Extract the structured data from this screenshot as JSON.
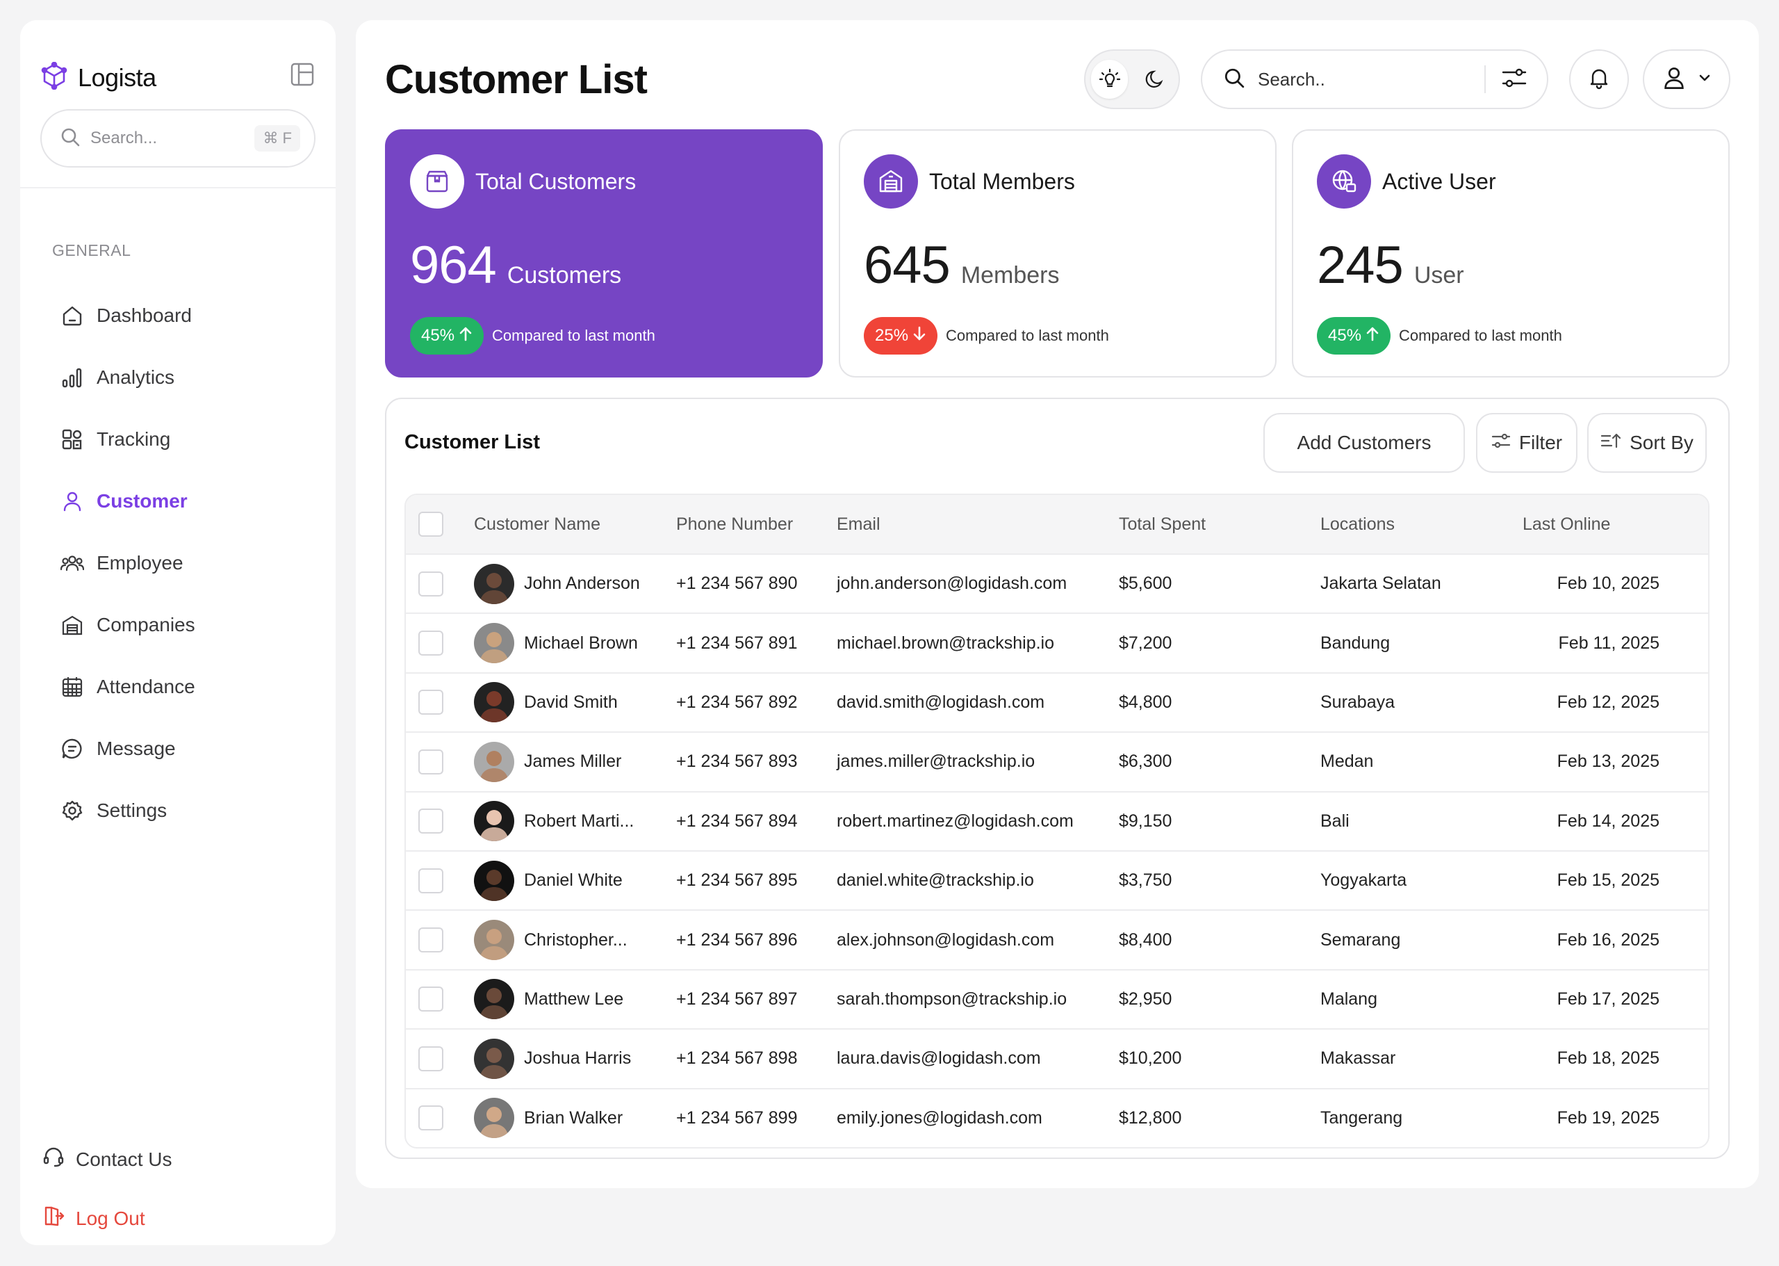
{
  "brand": {
    "name": "Logista"
  },
  "sidebar": {
    "search_placeholder": "Search...",
    "search_shortcut": "⌘ F",
    "group_label": "GENERAL",
    "items": [
      {
        "label": "Dashboard",
        "icon": "home-icon"
      },
      {
        "label": "Analytics",
        "icon": "analytics-icon"
      },
      {
        "label": "Tracking",
        "icon": "tracking-icon"
      },
      {
        "label": "Customer",
        "icon": "user-icon",
        "active": true
      },
      {
        "label": "Employee",
        "icon": "team-icon"
      },
      {
        "label": "Companies",
        "icon": "building-icon"
      },
      {
        "label": "Attendance",
        "icon": "calendar-icon"
      },
      {
        "label": "Message",
        "icon": "message-icon"
      },
      {
        "label": "Settings",
        "icon": "gear-icon"
      }
    ],
    "contact_label": "Contact Us",
    "logout_label": "Log Out"
  },
  "header": {
    "title": "Customer List",
    "search_placeholder": "Search.."
  },
  "stats": [
    {
      "title": "Total Customers",
      "value": "964",
      "unit": "Customers",
      "change": "45%",
      "direction": "up",
      "compare": "Compared to last month",
      "icon": "box-icon"
    },
    {
      "title": "Total Members",
      "value": "645",
      "unit": "Members",
      "change": "25%",
      "direction": "down",
      "compare": "Compared to last month",
      "icon": "warehouse-icon"
    },
    {
      "title": "Active User",
      "value": "245",
      "unit": "User",
      "change": "45%",
      "direction": "up",
      "compare": "Compared to last month",
      "icon": "globe-icon"
    }
  ],
  "table": {
    "title": "Customer List",
    "add_label": "Add Customers",
    "filter_label": "Filter",
    "sort_label": "Sort By",
    "columns": [
      "Customer Name",
      "Phone Number",
      "Email",
      "Total Spent",
      "Locations",
      "Last Online"
    ],
    "rows": [
      {
        "name": "John Anderson",
        "phone": "+1 234 567 890",
        "email": "john.anderson@logidash.com",
        "spent": "$5,600",
        "location": "Jakarta Selatan",
        "last": "Feb 10, 2025"
      },
      {
        "name": "Michael Brown",
        "phone": "+1 234 567 891",
        "email": "michael.brown@trackship.io",
        "spent": "$7,200",
        "location": "Bandung",
        "last": "Feb 11, 2025"
      },
      {
        "name": "David Smith",
        "phone": "+1 234 567 892",
        "email": "david.smith@logidash.com",
        "spent": "$4,800",
        "location": "Surabaya",
        "last": "Feb 12, 2025"
      },
      {
        "name": "James Miller",
        "phone": "+1 234 567 893",
        "email": "james.miller@trackship.io",
        "spent": "$6,300",
        "location": "Medan",
        "last": "Feb 13, 2025"
      },
      {
        "name": "Robert Marti...",
        "phone": "+1 234 567 894",
        "email": "robert.martinez@logidash.com",
        "spent": "$9,150",
        "location": "Bali",
        "last": "Feb 14, 2025"
      },
      {
        "name": "Daniel White",
        "phone": "+1 234 567 895",
        "email": "daniel.white@trackship.io",
        "spent": "$3,750",
        "location": "Yogyakarta",
        "last": "Feb 15, 2025"
      },
      {
        "name": "Christopher...",
        "phone": "+1 234 567 896",
        "email": "alex.johnson@logidash.com",
        "spent": "$8,400",
        "location": "Semarang",
        "last": "Feb 16, 2025"
      },
      {
        "name": "Matthew Lee",
        "phone": "+1 234 567 897",
        "email": "sarah.thompson@trackship.io",
        "spent": "$2,950",
        "location": "Malang",
        "last": "Feb 17, 2025"
      },
      {
        "name": "Joshua Harris",
        "phone": "+1 234 567 898",
        "email": "laura.davis@logidash.com",
        "spent": "$10,200",
        "location": "Makassar",
        "last": "Feb 18, 2025"
      },
      {
        "name": "Brian Walker",
        "phone": "+1 234 567 899",
        "email": "emily.jones@logidash.com",
        "spent": "$12,800",
        "location": "Tangerang",
        "last": "Feb 19, 2025"
      }
    ]
  },
  "colors": {
    "accent": "#7645c4",
    "up": "#22b464",
    "down": "#f04438",
    "logout": "#e5483d"
  }
}
